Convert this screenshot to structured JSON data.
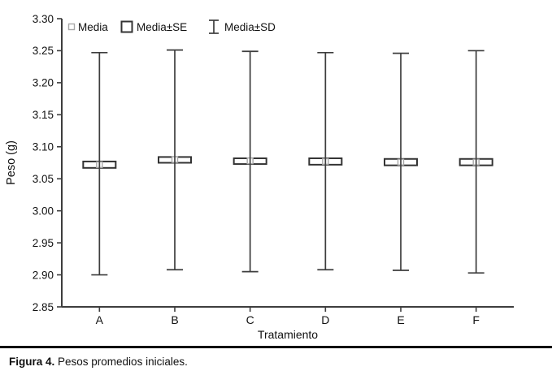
{
  "figure": {
    "caption_label": "Figura 4.",
    "caption_text": " Pesos promedios iniciales."
  },
  "chart_data": {
    "type": "box",
    "subtype": "mean-se-sd-whisker-plot",
    "title": "",
    "xlabel": "Tratamiento",
    "ylabel": "Peso (g)",
    "ylim": [
      2.85,
      3.3
    ],
    "ytick_step": 0.05,
    "grid": false,
    "legend_position": "top-left-inside",
    "categories": [
      "A",
      "B",
      "C",
      "D",
      "E",
      "F"
    ],
    "series": {
      "media": [
        3.072,
        3.08,
        3.078,
        3.077,
        3.076,
        3.076
      ],
      "se_low": [
        3.067,
        3.075,
        3.073,
        3.072,
        3.071,
        3.071
      ],
      "se_high": [
        3.077,
        3.084,
        3.082,
        3.082,
        3.081,
        3.081
      ],
      "sd_low": [
        2.9,
        2.908,
        2.905,
        2.908,
        2.907,
        2.903
      ],
      "sd_high": [
        3.247,
        3.251,
        3.249,
        3.247,
        3.246,
        3.25
      ]
    },
    "legend": [
      {
        "label": "Media",
        "marker": "mean-square-icon"
      },
      {
        "label": "Media±SE",
        "marker": "box-square-icon"
      },
      {
        "label": "Media±SD",
        "marker": "whisker-ibeam-icon"
      }
    ],
    "colors": {
      "line": "#3d3d3d",
      "box_border": "#333333",
      "mean_border": "#a8a8a8",
      "fill": "#ffffff",
      "text": "#111111"
    }
  }
}
